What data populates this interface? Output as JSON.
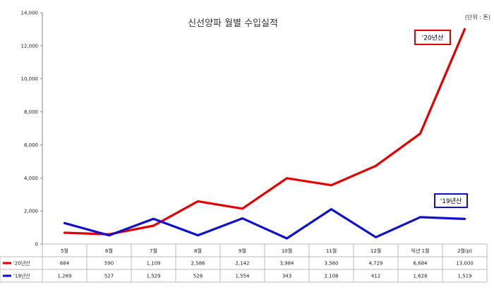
{
  "chart_data": {
    "type": "line",
    "title": "신선양파 월별 수입실적",
    "unit": "(단위 : 톤)",
    "categories": [
      "5월",
      "6월",
      "7월",
      "8월",
      "9월",
      "10월",
      "11월",
      "12월",
      "익년 1월",
      "2월(p)"
    ],
    "ylim": [
      0,
      14000
    ],
    "yticks": [
      "0",
      "2,000",
      "4,000",
      "6,000",
      "8,000",
      "10,000",
      "12,000",
      "14,000"
    ],
    "grid": false,
    "series": [
      {
        "name": "'20년산",
        "color": "#e00000",
        "values": [
          684,
          590,
          1109,
          2586,
          2142,
          3984,
          3560,
          4729,
          6684,
          13000
        ],
        "labels": [
          "684",
          "590",
          "1,109",
          "2,586",
          "2,142",
          "3,984",
          "3,560",
          "4,729",
          "6,684",
          "13,000"
        ]
      },
      {
        "name": "'19년산",
        "color": "#1010c8",
        "values": [
          1269,
          527,
          1529,
          528,
          1554,
          343,
          2108,
          412,
          1628,
          1519
        ],
        "labels": [
          "1,269",
          "527",
          "1,529",
          "528",
          "1,554",
          "343",
          "2,108",
          "412",
          "1,628",
          "1,519"
        ]
      }
    ]
  }
}
